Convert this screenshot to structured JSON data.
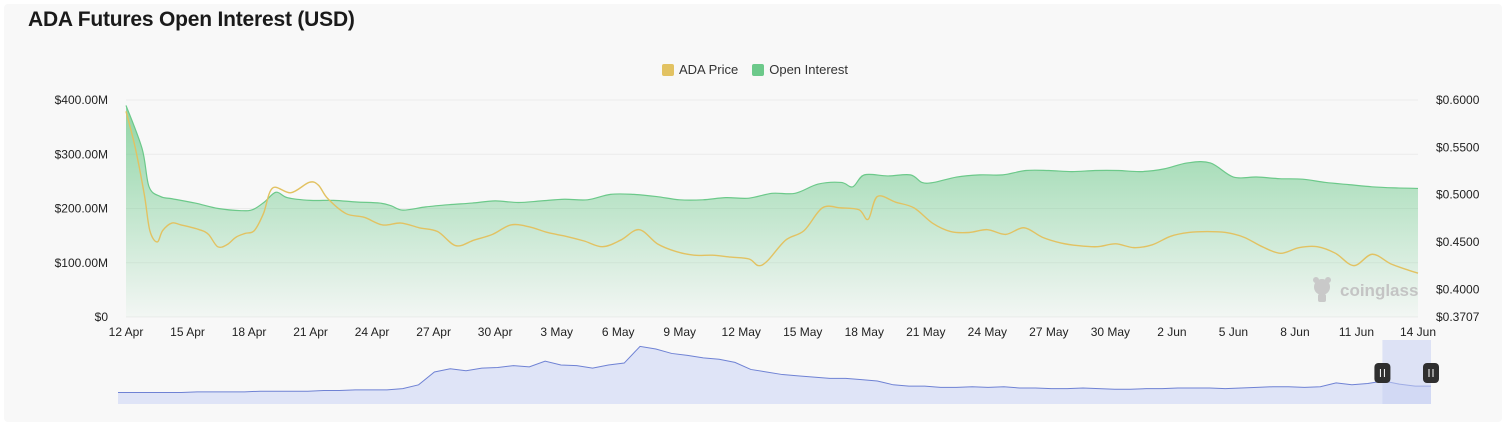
{
  "title": "ADA Futures Open Interest (USD)",
  "legend": [
    {
      "label": "ADA Price",
      "color": "#e2c262"
    },
    {
      "label": "Open Interest",
      "color": "#6cc98a"
    }
  ],
  "watermark": "coinglass",
  "colors": {
    "price_line": "#e2c262",
    "oi_line": "#6cc98a",
    "oi_fill_top": "#6cc98a",
    "navigator_line": "#6f82d4",
    "navigator_fill": "#dfe4f7",
    "grid": "#ebebeb"
  },
  "chart_data": {
    "type": "area",
    "x_ticks": [
      "12 Apr",
      "15 Apr",
      "18 Apr",
      "21 Apr",
      "24 Apr",
      "27 Apr",
      "30 Apr",
      "3 May",
      "6 May",
      "9 May",
      "12 May",
      "15 May",
      "18 May",
      "21 May",
      "24 May",
      "27 May",
      "30 May",
      "2 Jun",
      "5 Jun",
      "8 Jun",
      "11 Jun",
      "14 Jun"
    ],
    "y_left": {
      "ticks": [
        "$0",
        "$100.00M",
        "$200.00M",
        "$300.00M",
        "$400.00M"
      ],
      "lim": [
        0,
        400
      ]
    },
    "y_right": {
      "ticks": [
        "$0.3707",
        "$0.4000",
        "$0.4500",
        "$0.5000",
        "$0.5500",
        "$0.6000"
      ],
      "lim": [
        0.3707,
        0.6
      ]
    },
    "series": [
      {
        "name": "Open Interest",
        "axis": "left",
        "points": [
          [
            0,
            390
          ],
          [
            0.7,
            310
          ],
          [
            1,
            240
          ],
          [
            1.5,
            222
          ],
          [
            2,
            218
          ],
          [
            3,
            210
          ],
          [
            4,
            200
          ],
          [
            5,
            196
          ],
          [
            5.5,
            198
          ],
          [
            6,
            212
          ],
          [
            6.5,
            230
          ],
          [
            7,
            220
          ],
          [
            8,
            215
          ],
          [
            9,
            215
          ],
          [
            10,
            212
          ],
          [
            11,
            210
          ],
          [
            11.5,
            205
          ],
          [
            12,
            197
          ],
          [
            13,
            203
          ],
          [
            14,
            207
          ],
          [
            15,
            210
          ],
          [
            16,
            214
          ],
          [
            17,
            211
          ],
          [
            18,
            214
          ],
          [
            19,
            217
          ],
          [
            20,
            216
          ],
          [
            21,
            226
          ],
          [
            22,
            226
          ],
          [
            23,
            222
          ],
          [
            24,
            216
          ],
          [
            25,
            216
          ],
          [
            26,
            220
          ],
          [
            27,
            219
          ],
          [
            28,
            228
          ],
          [
            29,
            228
          ],
          [
            30,
            245
          ],
          [
            31,
            248
          ],
          [
            31.5,
            240
          ],
          [
            32,
            262
          ],
          [
            33,
            260
          ],
          [
            34,
            262
          ],
          [
            34.5,
            248
          ],
          [
            35,
            248
          ],
          [
            36,
            258
          ],
          [
            37,
            262
          ],
          [
            38,
            262
          ],
          [
            39,
            270
          ],
          [
            40,
            270
          ],
          [
            41,
            268
          ],
          [
            42,
            270
          ],
          [
            43,
            270
          ],
          [
            44,
            268
          ],
          [
            45,
            273
          ],
          [
            46,
            284
          ],
          [
            47,
            284
          ],
          [
            48,
            258
          ],
          [
            49,
            258
          ],
          [
            50,
            255
          ],
          [
            51,
            254
          ],
          [
            52,
            248
          ],
          [
            53,
            244
          ],
          [
            54,
            240
          ],
          [
            55,
            238
          ],
          [
            56,
            237
          ]
        ]
      },
      {
        "name": "ADA Price",
        "axis": "right",
        "points": [
          [
            0,
            0.588
          ],
          [
            0.5,
            0.55
          ],
          [
            1,
            0.5
          ],
          [
            1.3,
            0.462
          ],
          [
            1.7,
            0.45
          ],
          [
            2,
            0.462
          ],
          [
            2.5,
            0.47
          ],
          [
            3,
            0.468
          ],
          [
            4,
            0.463
          ],
          [
            4.5,
            0.458
          ],
          [
            5,
            0.445
          ],
          [
            5.5,
            0.447
          ],
          [
            6,
            0.455
          ],
          [
            6.5,
            0.459
          ],
          [
            7,
            0.462
          ],
          [
            7.5,
            0.48
          ],
          [
            8,
            0.507
          ],
          [
            9,
            0.502
          ],
          [
            10,
            0.513
          ],
          [
            10.5,
            0.51
          ],
          [
            11,
            0.496
          ],
          [
            12,
            0.48
          ],
          [
            13,
            0.476
          ],
          [
            14,
            0.468
          ],
          [
            15,
            0.47
          ],
          [
            16,
            0.465
          ],
          [
            17,
            0.461
          ],
          [
            18,
            0.446
          ],
          [
            19,
            0.452
          ],
          [
            20,
            0.458
          ],
          [
            21,
            0.468
          ],
          [
            22,
            0.466
          ],
          [
            23,
            0.46
          ],
          [
            24,
            0.456
          ],
          [
            25,
            0.451
          ],
          [
            26,
            0.445
          ],
          [
            27,
            0.452
          ],
          [
            28,
            0.463
          ],
          [
            29,
            0.448
          ],
          [
            30,
            0.44
          ],
          [
            31,
            0.436
          ],
          [
            32,
            0.436
          ],
          [
            33,
            0.434
          ],
          [
            34,
            0.432
          ],
          [
            34.5,
            0.425
          ],
          [
            35,
            0.43
          ],
          [
            36,
            0.452
          ],
          [
            37,
            0.462
          ],
          [
            38,
            0.486
          ],
          [
            39,
            0.486
          ],
          [
            40,
            0.484
          ],
          [
            40.5,
            0.474
          ],
          [
            41,
            0.498
          ],
          [
            42,
            0.492
          ],
          [
            43,
            0.486
          ],
          [
            44,
            0.47
          ],
          [
            45,
            0.461
          ],
          [
            46,
            0.46
          ],
          [
            47,
            0.463
          ],
          [
            48,
            0.458
          ],
          [
            49,
            0.465
          ],
          [
            50,
            0.455
          ],
          [
            51,
            0.449
          ],
          [
            52,
            0.446
          ],
          [
            53,
            0.445
          ],
          [
            54,
            0.448
          ],
          [
            55,
            0.444
          ],
          [
            56,
            0.447
          ],
          [
            57,
            0.456
          ],
          [
            58,
            0.46
          ],
          [
            59,
            0.461
          ],
          [
            60,
            0.46
          ],
          [
            61,
            0.455
          ],
          [
            62,
            0.445
          ],
          [
            63,
            0.438
          ],
          [
            64,
            0.444
          ],
          [
            65,
            0.445
          ],
          [
            66,
            0.438
          ],
          [
            67,
            0.425
          ],
          [
            68,
            0.437
          ],
          [
            69,
            0.427
          ],
          [
            70,
            0.42
          ],
          [
            70.5,
            0.417
          ]
        ]
      }
    ],
    "navigator": {
      "type": "area",
      "values": [
        0.18,
        0.18,
        0.18,
        0.18,
        0.18,
        0.19,
        0.19,
        0.19,
        0.19,
        0.2,
        0.2,
        0.2,
        0.2,
        0.21,
        0.21,
        0.22,
        0.22,
        0.22,
        0.24,
        0.3,
        0.5,
        0.55,
        0.52,
        0.56,
        0.57,
        0.6,
        0.58,
        0.67,
        0.61,
        0.6,
        0.56,
        0.61,
        0.64,
        0.9,
        0.86,
        0.79,
        0.76,
        0.72,
        0.7,
        0.65,
        0.54,
        0.5,
        0.46,
        0.44,
        0.42,
        0.4,
        0.4,
        0.38,
        0.36,
        0.3,
        0.28,
        0.28,
        0.26,
        0.26,
        0.27,
        0.26,
        0.27,
        0.25,
        0.25,
        0.24,
        0.24,
        0.25,
        0.24,
        0.23,
        0.23,
        0.24,
        0.24,
        0.25,
        0.25,
        0.25,
        0.24,
        0.25,
        0.26,
        0.27,
        0.27,
        0.26,
        0.27,
        0.33,
        0.3,
        0.32,
        0.36,
        0.31,
        0.28,
        0.28
      ],
      "selected_range": [
        0.963,
        1.0
      ]
    }
  }
}
